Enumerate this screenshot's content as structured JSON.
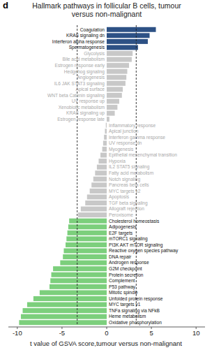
{
  "chart_data": {
    "type": "bar",
    "orientation": "horizontal",
    "panel_label": "d",
    "title": "Hallmark pathways in follicular B cells, tumour versus non-malignant",
    "x_label": "t value of GSVA score,tumour versus non-malignant",
    "categories": [
      "Coagulation",
      "KRAS signaling dn",
      "Interferon alpha response",
      "Spermatogenesis",
      "Glycolysis",
      "Bile acid metabolism",
      "Estrogen response early",
      "Hedgehog signaling",
      "Angiogenesis",
      "IL6 JAK STAT3 signaling",
      "Apical surface",
      "WNT beta Catenin signaling",
      "UV response up",
      "Xenobiotic metabolism",
      "KRAS signaling up",
      "Estrogen response late",
      "Inflammatory response",
      "Apical junction",
      "Interferon gamma response",
      "UV response dn",
      "Myogenesis",
      "Epithelial mesenchymal transition",
      "Hypoxia",
      "IL2 STAT5 signaling",
      "Fatty acid metabolism",
      "Notch signaling",
      "Pancreas beta cells",
      "MYC targets v2",
      "Apoptosis",
      "TGF beta signaling",
      "Allograft rejection",
      "Peroxisome",
      "Cholesterol homeostasis",
      "Adipogenesis",
      "E2F targets",
      "mTORC1 signaling",
      "PI3K AKT mTOR signaling",
      "Reactive oxygen species pathway",
      "DNA repair",
      "Androgen response",
      "G2M checkpoint",
      "Protein secretion",
      "Complement",
      "P53 pathway",
      "Mitotic spindle",
      "Unfolded protein response",
      "MYC targets v1",
      "TNFa signaling via NFkB",
      "Heme metabolism",
      "Oxidative phosphorylation"
    ],
    "values": [
      5.5,
      4.8,
      4.6,
      3.5,
      2.9,
      2.8,
      2.5,
      2.3,
      2.2,
      2.1,
      1.8,
      1.7,
      1.4,
      1.2,
      0.9,
      0.3,
      -0.1,
      -0.2,
      -0.3,
      -0.4,
      -0.5,
      -0.7,
      -0.9,
      -1.1,
      -1.3,
      -1.5,
      -1.7,
      -1.9,
      -2.2,
      -2.4,
      -2.9,
      -3.2,
      -4.2,
      -4.3,
      -4.4,
      -4.5,
      -4.6,
      -4.8,
      -4.9,
      -5.2,
      -6.0,
      -6.2,
      -6.3,
      -6.4,
      -7.5,
      -8.2,
      -8.9,
      -9.4,
      -9.6,
      -9.8
    ],
    "colors": [
      "#2d5185",
      "#2d5185",
      "#2d5185",
      "#2d5185",
      "#c8c8c8",
      "#c8c8c8",
      "#c8c8c8",
      "#c8c8c8",
      "#c8c8c8",
      "#c8c8c8",
      "#c8c8c8",
      "#c8c8c8",
      "#c8c8c8",
      "#c8c8c8",
      "#c8c8c8",
      "#c8c8c8",
      "#c8c8c8",
      "#c8c8c8",
      "#c8c8c8",
      "#c8c8c8",
      "#c8c8c8",
      "#c8c8c8",
      "#c8c8c8",
      "#c8c8c8",
      "#c8c8c8",
      "#c8c8c8",
      "#c8c8c8",
      "#c8c8c8",
      "#c8c8c8",
      "#c8c8c8",
      "#c8c8c8",
      "#c8c8c8",
      "#7ccf7c",
      "#7ccf7c",
      "#7ccf7c",
      "#7ccf7c",
      "#7ccf7c",
      "#7ccf7c",
      "#7ccf7c",
      "#7ccf7c",
      "#7ccf7c",
      "#7ccf7c",
      "#7ccf7c",
      "#7ccf7c",
      "#7ccf7c",
      "#7ccf7c",
      "#7ccf7c",
      "#7ccf7c",
      "#7ccf7c",
      "#7ccf7c"
    ],
    "reference_lines": [
      -3.3,
      3.3
    ],
    "xlim": [
      -11,
      11
    ],
    "xticks": [
      -10,
      -5,
      0,
      5,
      10
    ],
    "grid": false
  }
}
